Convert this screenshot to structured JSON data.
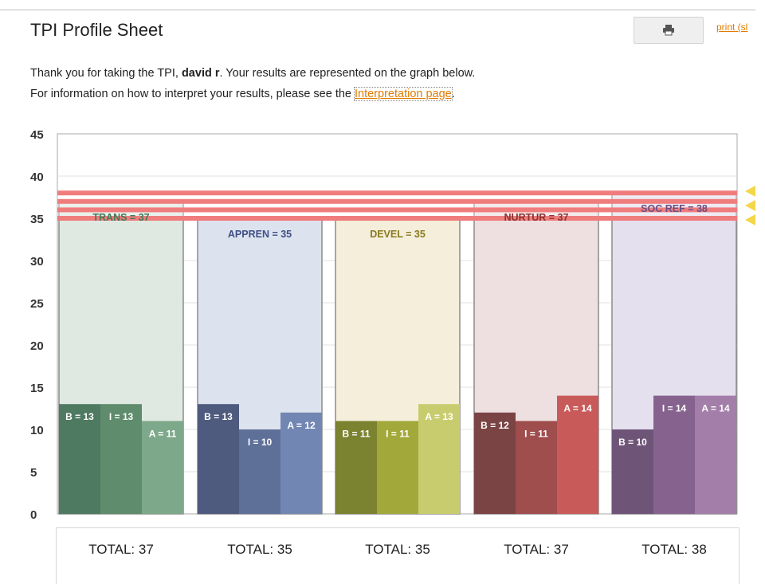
{
  "page": {
    "title": "TPI Profile Sheet",
    "print_link": "print (sl",
    "intro_line1_prefix": "Thank you for taking the TPI, ",
    "user_name": "david r",
    "intro_line1_suffix": ". Your results are represented on the graph below.",
    "intro_line2_prefix": "For information on how to interpret your results, please see the ",
    "interpretation_link": "Interpretation page",
    "intro_line2_suffix": "."
  },
  "icons": {
    "print": "printer-icon",
    "side_marker": "arrow-left-icon"
  },
  "chart_data": {
    "type": "bar",
    "ylim": [
      0,
      45
    ],
    "yticks": [
      "0",
      "5",
      "10",
      "15",
      "20",
      "25",
      "30",
      "35",
      "40",
      "45"
    ],
    "reference_band": [
      35,
      38
    ],
    "categories": [
      {
        "label": "TRANS = 37",
        "total": 37,
        "total_label": "TOTAL: 37",
        "bg": "#dfe9e2",
        "label_color": "#3f7a56",
        "subs": [
          {
            "label": "B = 13",
            "value": 13,
            "color": "#4e7a61"
          },
          {
            "label": "I = 13",
            "value": 13,
            "color": "#5f8c6c"
          },
          {
            "label": "A = 11",
            "value": 11,
            "color": "#7ea88a"
          }
        ]
      },
      {
        "label": "APPREN = 35",
        "total": 35,
        "total_label": "TOTAL: 35",
        "bg": "#dde3ee",
        "label_color": "#3e4f85",
        "subs": [
          {
            "label": "B = 13",
            "value": 13,
            "color": "#4e5a7e"
          },
          {
            "label": "I = 10",
            "value": 10,
            "color": "#5e6f98"
          },
          {
            "label": "A = 12",
            "value": 12,
            "color": "#7286b3"
          }
        ]
      },
      {
        "label": "DEVEL = 35",
        "total": 35,
        "total_label": "TOTAL: 35",
        "bg": "#f4eedb",
        "label_color": "#8a7a1e",
        "subs": [
          {
            "label": "B = 11",
            "value": 11,
            "color": "#7b8230"
          },
          {
            "label": "I = 11",
            "value": 11,
            "color": "#a3a83a"
          },
          {
            "label": "A = 13",
            "value": 13,
            "color": "#c8cc6e"
          }
        ]
      },
      {
        "label": "NURTUR = 37",
        "total": 37,
        "total_label": "TOTAL: 37",
        "bg": "#eedfe0",
        "label_color": "#8a3232",
        "subs": [
          {
            "label": "B = 12",
            "value": 12,
            "color": "#7a4444"
          },
          {
            "label": "I = 11",
            "value": 11,
            "color": "#a04d4e"
          },
          {
            "label": "A = 14",
            "value": 14,
            "color": "#c95a5a"
          }
        ]
      },
      {
        "label": "SOC REF = 38",
        "total": 38,
        "total_label": "TOTAL: 38",
        "bg": "#e5e0ee",
        "label_color": "#6a4f86",
        "subs": [
          {
            "label": "B = 10",
            "value": 10,
            "color": "#6e5578"
          },
          {
            "label": "I = 14",
            "value": 14,
            "color": "#86638e"
          },
          {
            "label": "A = 14",
            "value": 14,
            "color": "#a27ea9"
          }
        ]
      }
    ]
  }
}
